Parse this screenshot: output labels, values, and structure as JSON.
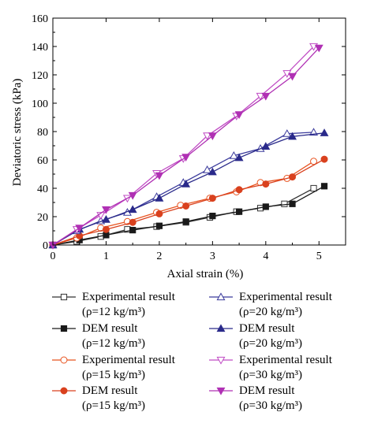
{
  "chart_data": {
    "type": "line",
    "xlabel": "Axial strain (%)",
    "ylabel": "Deviatoric stress (kPa)",
    "xlim": [
      0,
      5.5
    ],
    "ylim": [
      0,
      160
    ],
    "xticks": [
      0,
      1,
      2,
      3,
      4,
      5
    ],
    "yticks": [
      0,
      20,
      40,
      60,
      80,
      100,
      120,
      140,
      160
    ],
    "grid": false,
    "legend_placement": "bottom, two columns",
    "series": [
      {
        "name_line1": "Experimental result",
        "name_line2": "(ρ=12 kg/m³)",
        "color": "#333333",
        "marker": "square",
        "filled": false,
        "x": [
          0,
          0.45,
          0.9,
          1.4,
          1.95,
          2.5,
          2.95,
          3.45,
          3.9,
          4.35,
          4.9
        ],
        "y": [
          0,
          2.5,
          6,
          11,
          13,
          16,
          19.5,
          23.5,
          26,
          29,
          40
        ]
      },
      {
        "name_line1": "DEM result",
        "name_line2": "(ρ=12 kg/m³)",
        "color": "#1a1a1a",
        "marker": "square",
        "filled": true,
        "x": [
          0,
          0.5,
          1.0,
          1.5,
          2.0,
          2.5,
          3.0,
          3.5,
          4.0,
          4.5,
          5.1
        ],
        "y": [
          0,
          3.5,
          7,
          10.5,
          13.5,
          16.5,
          20.5,
          23.5,
          27,
          29,
          41.5
        ]
      },
      {
        "name_line1": "Experimental result",
        "name_line2": "(ρ=15 kg/m³)",
        "color": "#e8531f",
        "marker": "circle",
        "filled": false,
        "x": [
          0,
          0.45,
          0.9,
          1.4,
          1.95,
          2.4,
          2.95,
          3.45,
          3.9,
          4.4,
          4.9
        ],
        "y": [
          0,
          5,
          12,
          16.5,
          23,
          28,
          33,
          37.5,
          44,
          47,
          59
        ]
      },
      {
        "name_line1": "DEM result",
        "name_line2": "(ρ=15 kg/m³)",
        "color": "#d9411e",
        "marker": "circle",
        "filled": true,
        "x": [
          0,
          0.5,
          1.0,
          1.5,
          2.0,
          2.5,
          3.0,
          3.5,
          4.0,
          4.5,
          5.1
        ],
        "y": [
          0,
          6.5,
          11,
          16,
          22,
          27.5,
          33,
          39,
          43,
          48,
          60.5
        ]
      },
      {
        "name_line1": "Experimental result",
        "name_line2": "(ρ=20 kg/m³)",
        "color": "#3b3b9c",
        "marker": "triangle-up",
        "filled": false,
        "x": [
          0,
          0.45,
          0.9,
          1.4,
          1.95,
          2.45,
          2.9,
          3.4,
          3.9,
          4.4,
          4.9
        ],
        "y": [
          0,
          10,
          17,
          23,
          34,
          44,
          53,
          63,
          68,
          78.5,
          79.5
        ]
      },
      {
        "name_line1": "DEM result",
        "name_line2": "(ρ=20 kg/m³)",
        "color": "#2a2a8a",
        "marker": "triangle-up",
        "filled": true,
        "x": [
          0,
          0.5,
          1.0,
          1.5,
          2.0,
          2.5,
          3.0,
          3.5,
          4.0,
          4.5,
          5.1
        ],
        "y": [
          0,
          11,
          18,
          25,
          33,
          43,
          51.5,
          61.5,
          69.5,
          76.5,
          79
        ]
      },
      {
        "name_line1": "Experimental result",
        "name_line2": "(ρ=30 kg/m³)",
        "color": "#c04cc4",
        "marker": "triangle-down",
        "filled": false,
        "x": [
          0,
          0.45,
          0.9,
          1.4,
          1.95,
          2.45,
          2.9,
          3.45,
          3.9,
          4.4,
          4.9
        ],
        "y": [
          0,
          11,
          21,
          33,
          50.5,
          61,
          77,
          91,
          105,
          121,
          140
        ]
      },
      {
        "name_line1": "DEM result",
        "name_line2": "(ρ=30 kg/m³)",
        "color": "#b030b4",
        "marker": "triangle-down",
        "filled": true,
        "x": [
          0,
          0.5,
          1.0,
          1.5,
          2.0,
          2.5,
          3.0,
          3.5,
          4.0,
          4.5,
          5.0
        ],
        "y": [
          0,
          12,
          25,
          35,
          49,
          62,
          77,
          92,
          105,
          119,
          139
        ]
      }
    ],
    "legend_order": [
      0,
      4,
      1,
      5,
      2,
      6,
      3,
      7
    ]
  }
}
